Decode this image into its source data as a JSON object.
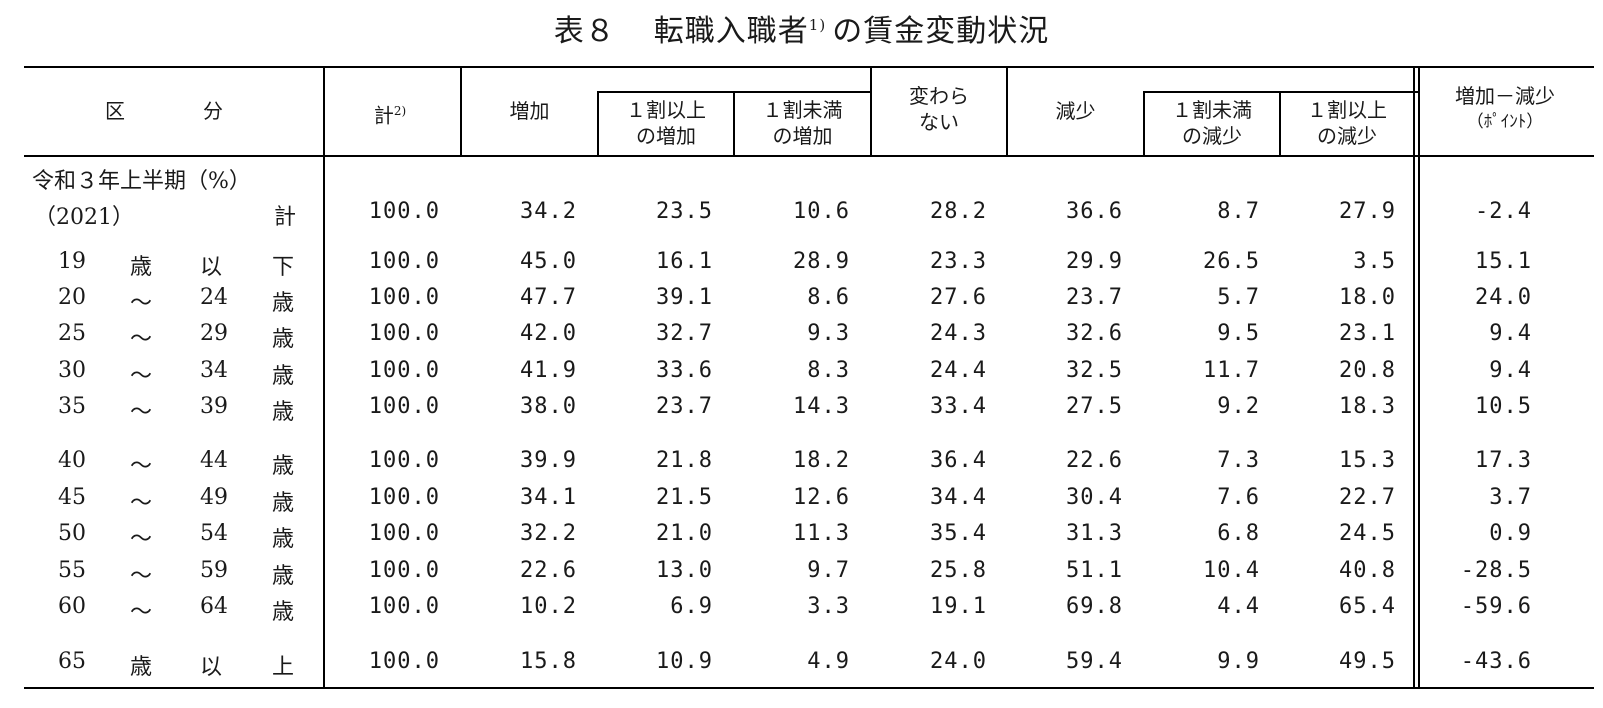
{
  "title": {
    "table_no": "表８",
    "main": "転職入職者",
    "note": "1)",
    "rest": "の賃金変動状況"
  },
  "header": {
    "kubun_a": "区",
    "kubun_b": "分",
    "kei": "計",
    "kei_note": "2)",
    "zouka": "増加",
    "zouka_over_1": "１割以上",
    "zouka_over_2": "の増加",
    "zouka_under_1": "１割未満",
    "zouka_under_2": "の増加",
    "kawaranai_1": "変わら",
    "kawaranai_2": "ない",
    "genshou": "減少",
    "genshou_under_1": "１割未満",
    "genshou_under_2": "の減少",
    "genshou_over_1": "１割以上",
    "genshou_over_2": "の減少",
    "diff_1": "増加－減少",
    "diff_2": "（ﾎﾟｲﾝﾄ）"
  },
  "period": {
    "label": "令和３年上半期",
    "unit": "（%）",
    "year": "（2021）",
    "total_label": "計"
  },
  "total_row": [
    "100.0",
    "34.2",
    "23.5",
    "10.6",
    "28.2",
    "36.6",
    "8.7",
    "27.9",
    "-2.4"
  ],
  "rows": [
    {
      "c1": "19",
      "c2": "歳",
      "c3": "以",
      "c4": "下",
      "v": [
        "100.0",
        "45.0",
        "16.1",
        "28.9",
        "23.3",
        "29.9",
        "26.5",
        "3.5",
        "15.1"
      ]
    },
    {
      "c1": "20",
      "c2": "～",
      "c3": "24",
      "c4": "歳",
      "v": [
        "100.0",
        "47.7",
        "39.1",
        "8.6",
        "27.6",
        "23.7",
        "5.7",
        "18.0",
        "24.0"
      ]
    },
    {
      "c1": "25",
      "c2": "～",
      "c3": "29",
      "c4": "歳",
      "v": [
        "100.0",
        "42.0",
        "32.7",
        "9.3",
        "24.3",
        "32.6",
        "9.5",
        "23.1",
        "9.4"
      ]
    },
    {
      "c1": "30",
      "c2": "～",
      "c3": "34",
      "c4": "歳",
      "v": [
        "100.0",
        "41.9",
        "33.6",
        "8.3",
        "24.4",
        "32.5",
        "11.7",
        "20.8",
        "9.4"
      ]
    },
    {
      "c1": "35",
      "c2": "～",
      "c3": "39",
      "c4": "歳",
      "v": [
        "100.0",
        "38.0",
        "23.7",
        "14.3",
        "33.4",
        "27.5",
        "9.2",
        "18.3",
        "10.5"
      ]
    },
    {
      "c1": "40",
      "c2": "～",
      "c3": "44",
      "c4": "歳",
      "v": [
        "100.0",
        "39.9",
        "21.8",
        "18.2",
        "36.4",
        "22.6",
        "7.3",
        "15.3",
        "17.3"
      ]
    },
    {
      "c1": "45",
      "c2": "～",
      "c3": "49",
      "c4": "歳",
      "v": [
        "100.0",
        "34.1",
        "21.5",
        "12.6",
        "34.4",
        "30.4",
        "7.6",
        "22.7",
        "3.7"
      ]
    },
    {
      "c1": "50",
      "c2": "～",
      "c3": "54",
      "c4": "歳",
      "v": [
        "100.0",
        "32.2",
        "21.0",
        "11.3",
        "35.4",
        "31.3",
        "6.8",
        "24.5",
        "0.9"
      ]
    },
    {
      "c1": "55",
      "c2": "～",
      "c3": "59",
      "c4": "歳",
      "v": [
        "100.0",
        "22.6",
        "13.0",
        "9.7",
        "25.8",
        "51.1",
        "10.4",
        "40.8",
        "-28.5"
      ]
    },
    {
      "c1": "60",
      "c2": "～",
      "c3": "64",
      "c4": "歳",
      "v": [
        "100.0",
        "10.2",
        "6.9",
        "3.3",
        "19.1",
        "69.8",
        "4.4",
        "65.4",
        "-59.6"
      ]
    },
    {
      "c1": "65",
      "c2": "歳",
      "c3": "以",
      "c4": "上",
      "v": [
        "100.0",
        "15.8",
        "10.9",
        "4.9",
        "24.0",
        "59.4",
        "9.9",
        "49.5",
        "-43.6"
      ]
    }
  ]
}
